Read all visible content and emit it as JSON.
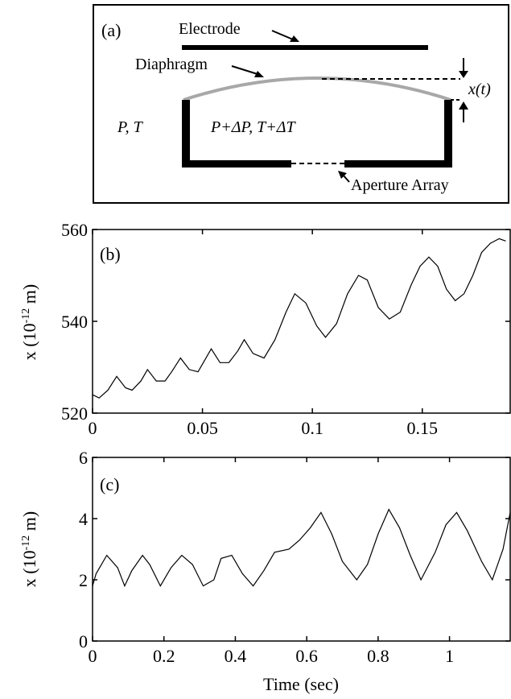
{
  "schematic": {
    "panel_label": "(a)",
    "electrode_label": "Electrode",
    "diaphragm_label": "Diaphragm",
    "outside_label": "P, T",
    "inside_label": "P+ΔP, T+ΔT",
    "displacement_label": "x(t)",
    "aperture_label": "Aperture Array"
  },
  "chart_data": [
    {
      "type": "line",
      "panel_label": "(b)",
      "title": "",
      "xlabel": "",
      "ylabel_base": "x (10",
      "ylabel_exp": "-12",
      "ylabel_unit": " m)",
      "xlim": [
        0,
        0.19
      ],
      "ylim": [
        520,
        560
      ],
      "xticks": [
        0,
        0.05,
        0.1,
        0.15
      ],
      "xtick_labels": [
        "0",
        "0.05",
        "0.1",
        "0.15"
      ],
      "yticks": [
        520,
        540,
        560
      ],
      "ytick_labels": [
        "520",
        "540",
        "560"
      ],
      "grid": false,
      "series": [
        {
          "color": "#000000",
          "x": [
            0,
            0.003,
            0.007,
            0.011,
            0.015,
            0.018,
            0.022,
            0.025,
            0.029,
            0.033,
            0.036,
            0.04,
            0.044,
            0.048,
            0.051,
            0.054,
            0.058,
            0.062,
            0.066,
            0.069,
            0.073,
            0.078,
            0.083,
            0.088,
            0.092,
            0.097,
            0.102,
            0.106,
            0.111,
            0.116,
            0.121,
            0.125,
            0.13,
            0.135,
            0.14,
            0.145,
            0.149,
            0.153,
            0.157,
            0.161,
            0.165,
            0.169,
            0.173,
            0.177,
            0.181,
            0.185,
            0.188
          ],
          "y": [
            524,
            523.3,
            525,
            528,
            525.5,
            525,
            527,
            529.5,
            527,
            527,
            529,
            532,
            529.5,
            529,
            531.5,
            534,
            531,
            531,
            533.5,
            536,
            533,
            532,
            536,
            542,
            546,
            544,
            539,
            536.5,
            539.5,
            546,
            550,
            549,
            543,
            540.5,
            542,
            548,
            552,
            554,
            552,
            547,
            544.5,
            546,
            550,
            555,
            557,
            558,
            557.5
          ]
        }
      ]
    },
    {
      "type": "line",
      "panel_label": "(c)",
      "title": "",
      "xlabel": "Time (sec)",
      "ylabel_base": "x (10",
      "ylabel_exp": "-12",
      "ylabel_unit": " m)",
      "xlim": [
        0,
        1.17
      ],
      "ylim": [
        0,
        6
      ],
      "xticks": [
        0,
        0.2,
        0.4,
        0.6,
        0.8,
        1
      ],
      "xtick_labels": [
        "0",
        "0.2",
        "0.4",
        "0.6",
        "0.8",
        "1"
      ],
      "yticks": [
        0,
        2,
        4,
        6
      ],
      "ytick_labels": [
        "0",
        "2",
        "4",
        "6"
      ],
      "grid": false,
      "series": [
        {
          "color": "#000000",
          "x": [
            0,
            0.01,
            0.04,
            0.07,
            0.09,
            0.11,
            0.14,
            0.16,
            0.19,
            0.22,
            0.25,
            0.28,
            0.31,
            0.34,
            0.36,
            0.39,
            0.42,
            0.45,
            0.48,
            0.51,
            0.55,
            0.58,
            0.61,
            0.64,
            0.67,
            0.7,
            0.74,
            0.77,
            0.8,
            0.83,
            0.86,
            0.89,
            0.92,
            0.96,
            0.99,
            1.02,
            1.05,
            1.09,
            1.12,
            1.15,
            1.17
          ],
          "y": [
            1.8,
            2.2,
            2.8,
            2.4,
            1.8,
            2.3,
            2.8,
            2.5,
            1.8,
            2.4,
            2.8,
            2.5,
            1.8,
            2.0,
            2.7,
            2.8,
            2.2,
            1.8,
            2.3,
            2.9,
            3.0,
            3.3,
            3.7,
            4.2,
            3.5,
            2.6,
            2.0,
            2.5,
            3.5,
            4.3,
            3.7,
            2.8,
            2.0,
            2.9,
            3.8,
            4.2,
            3.6,
            2.6,
            2.0,
            3.0,
            4.2
          ]
        }
      ]
    }
  ]
}
